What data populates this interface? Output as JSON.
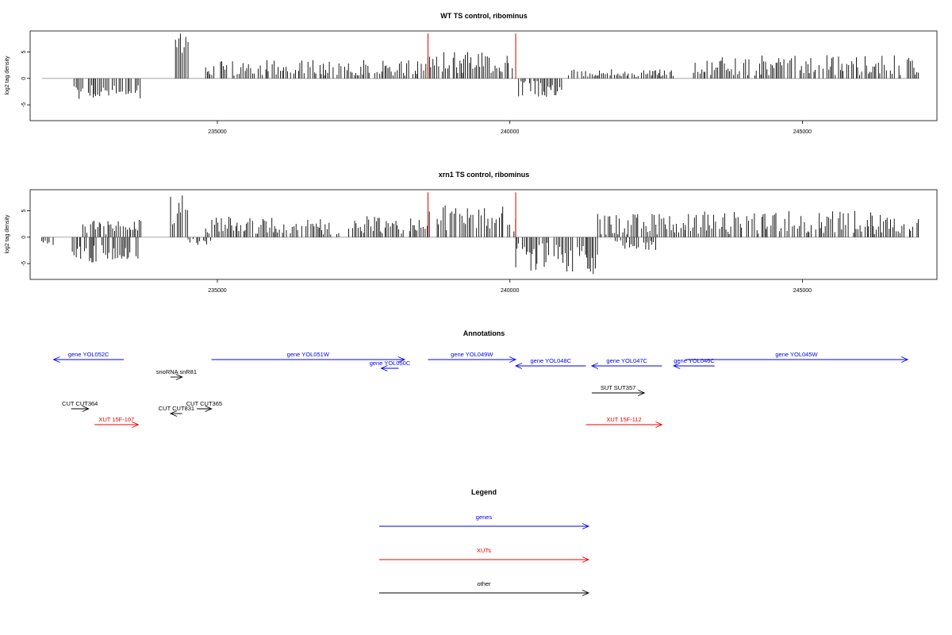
{
  "chart_data": [
    {
      "type": "bar",
      "title": "WT TS control, ribominus",
      "ylabel": "log2 tag density",
      "xlim": [
        231800,
        247300
      ],
      "ylim": [
        -8,
        9
      ],
      "x_ticks": [
        235000,
        240000,
        245000
      ],
      "y_ticks": [
        -5,
        0,
        5
      ],
      "x_tick_labels": [
        "235000",
        "240000",
        "245000"
      ],
      "y_tick_labels": [
        "-5",
        "0",
        "5"
      ],
      "grid": false,
      "segments": [
        {
          "x0": 232550,
          "x1": 233700,
          "sign": -1,
          "min": 1.2,
          "max": 4.0,
          "seed": 11
        },
        {
          "x0": 234250,
          "x1": 234500,
          "sign": 1,
          "min": 2.0,
          "max": 8.5,
          "seed": 12
        },
        {
          "x0": 234800,
          "x1": 238600,
          "sign": 1,
          "min": 0.5,
          "max": 3.5,
          "seed": 13
        },
        {
          "x0": 238600,
          "x1": 240100,
          "sign": 1,
          "min": 1.0,
          "max": 5.0,
          "seed": 14
        },
        {
          "x0": 240150,
          "x1": 240900,
          "sign": -1,
          "min": 0.5,
          "max": 3.5,
          "seed": 15
        },
        {
          "x0": 241000,
          "x1": 242800,
          "sign": 1,
          "min": 0.3,
          "max": 1.8,
          "seed": 16
        },
        {
          "x0": 243100,
          "x1": 247000,
          "sign": 1,
          "min": 0.5,
          "max": 4.5,
          "seed": 17
        }
      ],
      "markers": [
        238600,
        240100
      ],
      "marker_color": "#dd0000"
    },
    {
      "type": "bar",
      "title": "xrn1 TS control, ribominus",
      "ylabel": "log2 tag density",
      "xlim": [
        231800,
        247300
      ],
      "ylim": [
        -8,
        9
      ],
      "x_ticks": [
        235000,
        240000,
        245000
      ],
      "y_ticks": [
        -5,
        0,
        5
      ],
      "x_tick_labels": [
        "235000",
        "240000",
        "245000"
      ],
      "y_tick_labels": [
        "-5",
        "0",
        "5"
      ],
      "grid": false,
      "segments": [
        {
          "x0": 232000,
          "x1": 232200,
          "sign": -1,
          "min": 0.5,
          "max": 1.5,
          "seed": 21
        },
        {
          "x0": 232500,
          "x1": 233700,
          "sign": -1,
          "min": 1.0,
          "max": 4.8,
          "seed": 22
        },
        {
          "x0": 232700,
          "x1": 233700,
          "sign": 1,
          "min": 0.5,
          "max": 3.3,
          "seed": 23
        },
        {
          "x0": 234200,
          "x1": 234500,
          "sign": 1,
          "min": 2.0,
          "max": 8.3,
          "seed": 24
        },
        {
          "x0": 234500,
          "x1": 234900,
          "sign": -1,
          "min": 0.3,
          "max": 1.5,
          "seed": 25
        },
        {
          "x0": 234800,
          "x1": 238600,
          "sign": 1,
          "min": 0.5,
          "max": 4.0,
          "seed": 26
        },
        {
          "x0": 238600,
          "x1": 240100,
          "sign": 1,
          "min": 1.0,
          "max": 6.0,
          "seed": 27
        },
        {
          "x0": 240100,
          "x1": 241500,
          "sign": -1,
          "min": 1.0,
          "max": 7.2,
          "seed": 28
        },
        {
          "x0": 241500,
          "x1": 243000,
          "sign": 1,
          "min": 0.5,
          "max": 4.5,
          "seed": 29
        },
        {
          "x0": 241800,
          "x1": 242500,
          "sign": -1,
          "min": 0.3,
          "max": 2.5,
          "seed": 30
        },
        {
          "x0": 243000,
          "x1": 247000,
          "sign": 1,
          "min": 0.5,
          "max": 5.0,
          "seed": 31
        }
      ],
      "markers": [
        238600,
        240100
      ],
      "marker_color": "#dd0000"
    }
  ],
  "annotations": {
    "title": "Annotations",
    "colors": {
      "gene": "#0000ee",
      "xut": "#ee0000",
      "other": "#000000"
    },
    "items": [
      {
        "label": "gene YOL052C",
        "kind": "gene",
        "x0": 233400,
        "x1": 232200,
        "row": 0
      },
      {
        "label": "gene YOL051W",
        "kind": "gene",
        "x0": 234900,
        "x1": 238200,
        "row": 0
      },
      {
        "label": "gene YOL050C",
        "kind": "gene",
        "x0": 238100,
        "x1": 237800,
        "row": 0.55
      },
      {
        "label": "gene YOL049W",
        "kind": "gene",
        "x0": 238600,
        "x1": 240100,
        "row": 0
      },
      {
        "label": "gene YOL048C",
        "kind": "gene",
        "x0": 241300,
        "x1": 240100,
        "row": 0.4
      },
      {
        "label": "gene YOL047C",
        "kind": "gene",
        "x0": 242600,
        "x1": 241400,
        "row": 0.4
      },
      {
        "label": "gene YOL046C",
        "kind": "gene",
        "x0": 243500,
        "x1": 242800,
        "row": 0.4
      },
      {
        "label": "gene YOL045W",
        "kind": "gene",
        "x0": 243000,
        "x1": 246800,
        "row": 0
      },
      {
        "label": "snoRNA snR81",
        "kind": "other",
        "x0": 234200,
        "x1": 234400,
        "row": 1.1
      },
      {
        "label": "SUT SUT357",
        "kind": "other",
        "x0": 241400,
        "x1": 242300,
        "row": 2.1
      },
      {
        "label": "CUT CUT364",
        "kind": "other",
        "x0": 232500,
        "x1": 232800,
        "row": 3.1
      },
      {
        "label": "CUT CUT365",
        "kind": "other",
        "x0": 234650,
        "x1": 234900,
        "row": 3.1
      },
      {
        "label": "CUT CUT831",
        "kind": "other",
        "x0": 234400,
        "x1": 234200,
        "row": 3.4
      },
      {
        "label": "XUT 15F-107",
        "kind": "xut",
        "x0": 232900,
        "x1": 233650,
        "row": 4.1
      },
      {
        "label": "XUT 15F-112",
        "kind": "xut",
        "x0": 241300,
        "x1": 242600,
        "row": 4.1
      }
    ]
  },
  "legend": {
    "title": "Legend",
    "entries": [
      {
        "label": "genes",
        "kind": "gene"
      },
      {
        "label": "XUTs",
        "kind": "xut"
      },
      {
        "label": "other",
        "kind": "other"
      }
    ]
  }
}
